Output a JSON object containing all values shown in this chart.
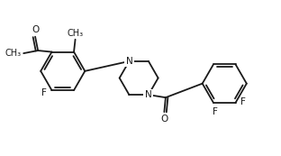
{
  "bg_color": "#ffffff",
  "line_color": "#1a1a1a",
  "line_width": 1.3,
  "font_size": 7.5,
  "label_color": "#1a1a1a",
  "figsize": [
    3.12,
    1.73
  ],
  "dpi": 100,
  "xlim": [
    0,
    10
  ],
  "ylim": [
    0,
    5.5
  ]
}
